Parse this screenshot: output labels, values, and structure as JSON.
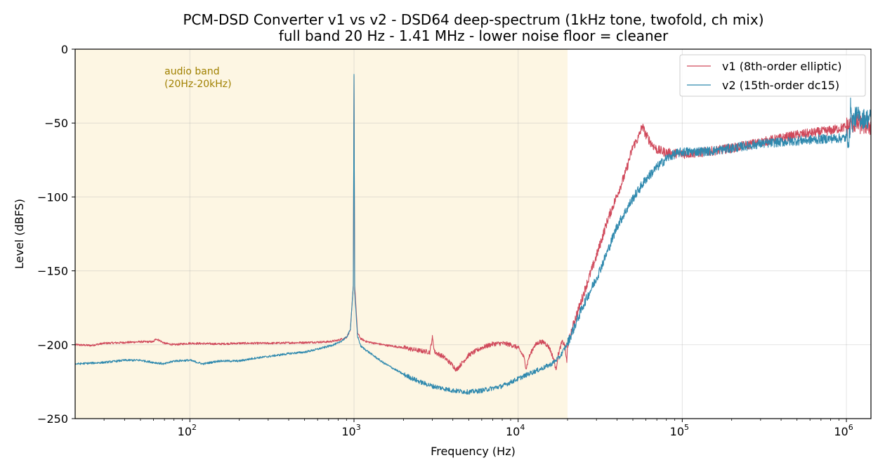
{
  "chart_data": {
    "type": "line",
    "title": "PCM-DSD Converter  v1 vs v2 - DSD64 deep-spectrum (1kHz tone, twofold, ch mix)",
    "subtitle": "full band 20 Hz - 1.41 MHz - lower noise floor = cleaner",
    "xlabel": "Frequency (Hz)",
    "ylabel": "Level (dBFS)",
    "x_scale": "log",
    "xlim": [
      20,
      1411200
    ],
    "ylim": [
      -250,
      0
    ],
    "x_ticks": [
      {
        "value": 100,
        "base": "10",
        "exp": "2"
      },
      {
        "value": 1000,
        "base": "10",
        "exp": "3"
      },
      {
        "value": 10000,
        "base": "10",
        "exp": "4"
      },
      {
        "value": 100000,
        "base": "10",
        "exp": "5"
      },
      {
        "value": 1000000,
        "base": "10",
        "exp": "6"
      }
    ],
    "y_ticks": [
      0,
      -50,
      -100,
      -150,
      -200,
      -250
    ],
    "grid": true,
    "legend_position": "top-right",
    "shaded_region": {
      "x": [
        20,
        20000
      ],
      "color": "#fdf6e3"
    },
    "annotation": {
      "lines": [
        "audio band",
        "(20Hz-20kHz)"
      ],
      "x": 70,
      "y": -17,
      "color": "#a08000"
    },
    "series": [
      {
        "name": "v1 (8th-order elliptic)",
        "color": "#d0495b",
        "points": [
          [
            20,
            -200
          ],
          [
            25,
            -200.5
          ],
          [
            30,
            -199
          ],
          [
            40,
            -198.5
          ],
          [
            50,
            -198
          ],
          [
            60,
            -198
          ],
          [
            62,
            -196
          ],
          [
            65,
            -197
          ],
          [
            70,
            -199
          ],
          [
            80,
            -200
          ],
          [
            100,
            -199
          ],
          [
            150,
            -199.5
          ],
          [
            200,
            -199
          ],
          [
            300,
            -199
          ],
          [
            500,
            -198.5
          ],
          [
            700,
            -198
          ],
          [
            800,
            -197
          ],
          [
            900,
            -195
          ],
          [
            950,
            -190
          ],
          [
            990,
            -160
          ],
          [
            1000,
            -18
          ],
          [
            1010,
            -160
          ],
          [
            1050,
            -192
          ],
          [
            1100,
            -196
          ],
          [
            1200,
            -198
          ],
          [
            1500,
            -200
          ],
          [
            2000,
            -202
          ],
          [
            2500,
            -204
          ],
          [
            2900,
            -205
          ],
          [
            3000,
            -195
          ],
          [
            3100,
            -205
          ],
          [
            3500,
            -208
          ],
          [
            4000,
            -214
          ],
          [
            4200,
            -217
          ],
          [
            4500,
            -213
          ],
          [
            5000,
            -207
          ],
          [
            6000,
            -202
          ],
          [
            7000,
            -199.5
          ],
          [
            8000,
            -199
          ],
          [
            9000,
            -200
          ],
          [
            10000,
            -202
          ],
          [
            10800,
            -208
          ],
          [
            11200,
            -216
          ],
          [
            11600,
            -209
          ],
          [
            12500,
            -201
          ],
          [
            13500,
            -198
          ],
          [
            14500,
            -198.5
          ],
          [
            15500,
            -202
          ],
          [
            16500,
            -210
          ],
          [
            17000,
            -217
          ],
          [
            17500,
            -207
          ],
          [
            18500,
            -198
          ],
          [
            19200,
            -200
          ],
          [
            19800,
            -212
          ],
          [
            20000,
            -200
          ],
          [
            21000,
            -193
          ],
          [
            22000,
            -184
          ],
          [
            24000,
            -172
          ],
          [
            26000,
            -160
          ],
          [
            30000,
            -140
          ],
          [
            35000,
            -116
          ],
          [
            40000,
            -99
          ],
          [
            45000,
            -84
          ],
          [
            48000,
            -73
          ],
          [
            50000,
            -66
          ],
          [
            54000,
            -60
          ],
          [
            57000,
            -52
          ],
          [
            60000,
            -58
          ],
          [
            65000,
            -64
          ],
          [
            70000,
            -68
          ],
          [
            80000,
            -70
          ],
          [
            100000,
            -71
          ],
          [
            130000,
            -70
          ],
          [
            200000,
            -67
          ],
          [
            300000,
            -63
          ],
          [
            500000,
            -58
          ],
          [
            800000,
            -55
          ],
          [
            1050000,
            -52
          ],
          [
            1100000,
            -50
          ],
          [
            1411200,
            -52
          ]
        ]
      },
      {
        "name": "v2 (15th-order dc15)",
        "color": "#2f89ae",
        "points": [
          [
            20,
            -213
          ],
          [
            30,
            -212
          ],
          [
            40,
            -210.5
          ],
          [
            50,
            -210.5
          ],
          [
            60,
            -212
          ],
          [
            70,
            -213
          ],
          [
            80,
            -211
          ],
          [
            100,
            -210.5
          ],
          [
            120,
            -213
          ],
          [
            150,
            -211
          ],
          [
            200,
            -211
          ],
          [
            250,
            -209
          ],
          [
            300,
            -208
          ],
          [
            400,
            -206
          ],
          [
            500,
            -205
          ],
          [
            600,
            -203
          ],
          [
            700,
            -201
          ],
          [
            800,
            -199
          ],
          [
            900,
            -195
          ],
          [
            950,
            -190
          ],
          [
            990,
            -160
          ],
          [
            1000,
            -17
          ],
          [
            1010,
            -165
          ],
          [
            1050,
            -194
          ],
          [
            1100,
            -201
          ],
          [
            1300,
            -207
          ],
          [
            1500,
            -212
          ],
          [
            2000,
            -220
          ],
          [
            2500,
            -225
          ],
          [
            3000,
            -228
          ],
          [
            4000,
            -231
          ],
          [
            5000,
            -232
          ],
          [
            6000,
            -231
          ],
          [
            8000,
            -228
          ],
          [
            10000,
            -223
          ],
          [
            12000,
            -219
          ],
          [
            14000,
            -216
          ],
          [
            16000,
            -213
          ],
          [
            18000,
            -208
          ],
          [
            20000,
            -199
          ],
          [
            22000,
            -188
          ],
          [
            25000,
            -173
          ],
          [
            30000,
            -155
          ],
          [
            35000,
            -137
          ],
          [
            40000,
            -120
          ],
          [
            50000,
            -101
          ],
          [
            60000,
            -88
          ],
          [
            70000,
            -80
          ],
          [
            80000,
            -74
          ],
          [
            90000,
            -71
          ],
          [
            100000,
            -69.5
          ],
          [
            150000,
            -69
          ],
          [
            200000,
            -67
          ],
          [
            300000,
            -64
          ],
          [
            500000,
            -62
          ],
          [
            800000,
            -60.5
          ],
          [
            1050000,
            -60
          ],
          [
            1060000,
            -33
          ],
          [
            1080000,
            -50
          ],
          [
            1150000,
            -45
          ],
          [
            1250000,
            -47
          ],
          [
            1411200,
            -47
          ]
        ]
      }
    ]
  }
}
